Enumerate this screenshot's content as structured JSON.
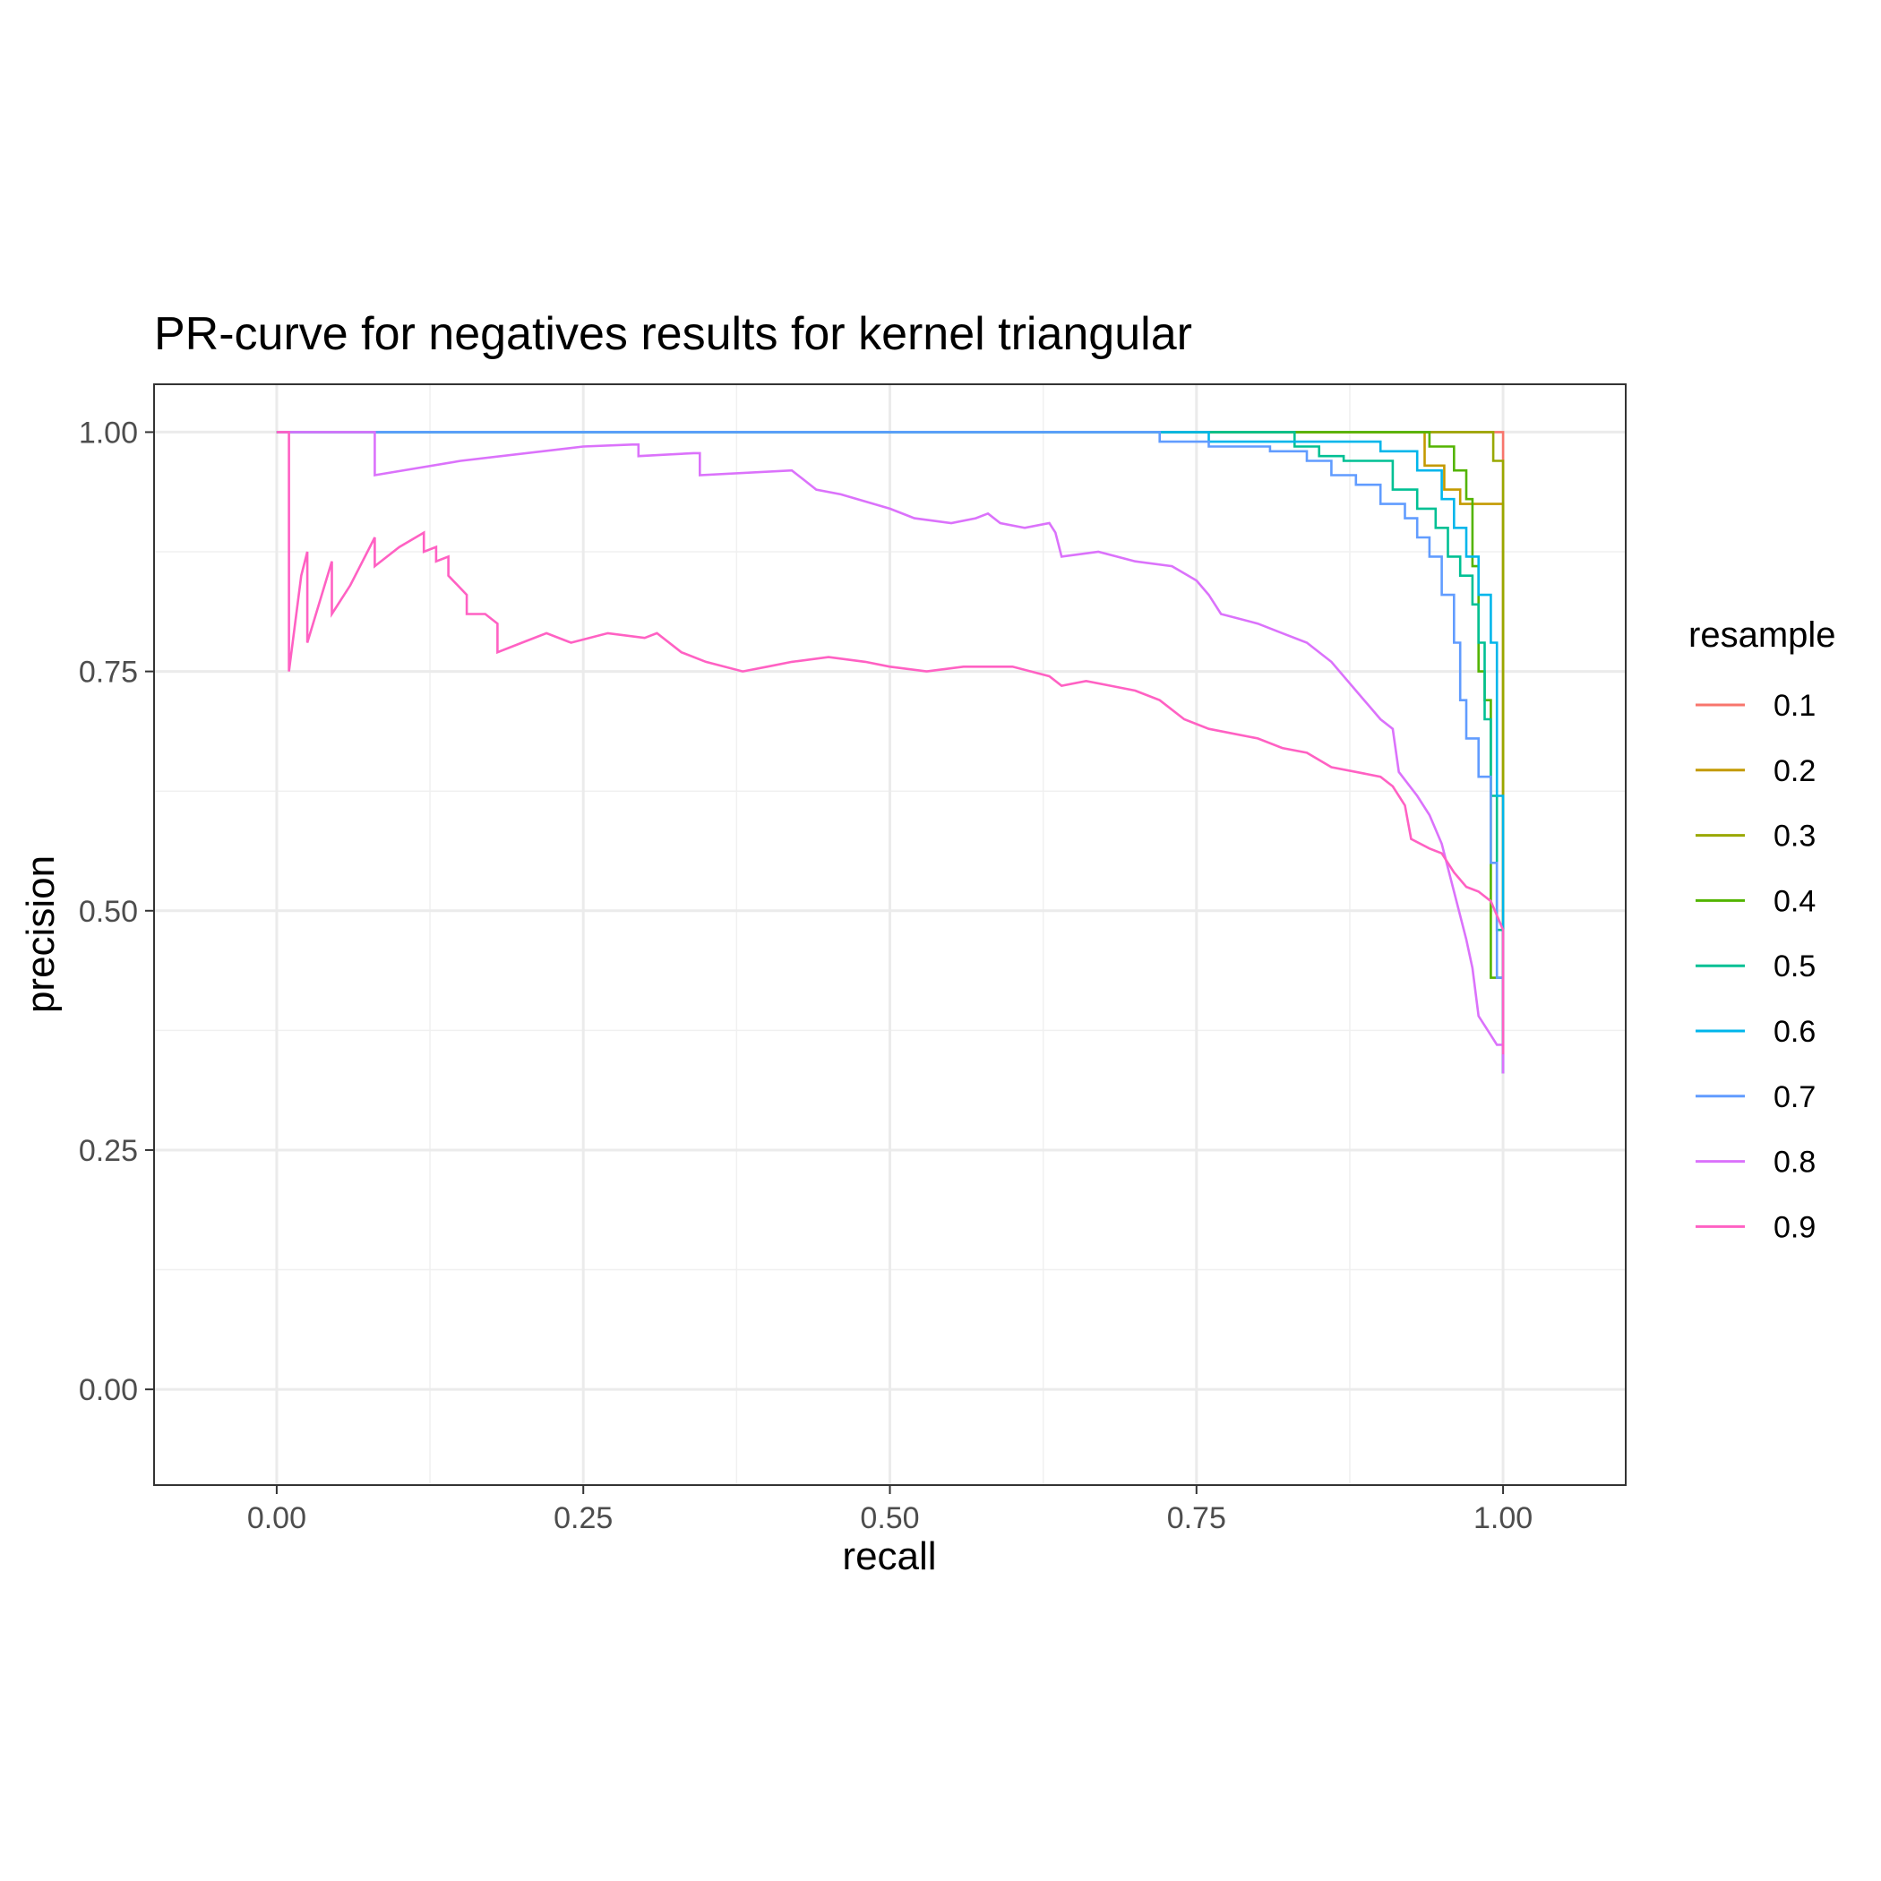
{
  "chart_data": {
    "type": "line",
    "title": "PR-curve for negatives results for kernel triangular",
    "xlabel": "recall",
    "ylabel": "precision",
    "xlim": [
      -0.1,
      1.1
    ],
    "ylim": [
      -0.1,
      1.05
    ],
    "x_ticks": [
      0,
      0.25,
      0.5,
      0.75,
      1
    ],
    "x_tick_labels": [
      "0.00",
      "0.25",
      "0.50",
      "0.75",
      "1.00"
    ],
    "y_ticks": [
      0,
      0.25,
      0.5,
      0.75,
      1
    ],
    "y_tick_labels": [
      "0.00",
      "0.25",
      "0.50",
      "0.75",
      "1.00"
    ],
    "grid": true,
    "legend": {
      "title": "resample",
      "position": "right"
    },
    "series": [
      {
        "name": "0.1",
        "color": "#F8766D",
        "points": [
          [
            0,
            1
          ],
          [
            0.999,
            1
          ],
          [
            1,
            1
          ],
          [
            1,
            0.35
          ],
          [
            1,
            0.33
          ]
        ]
      },
      {
        "name": "0.2",
        "color": "#C49A00",
        "points": [
          [
            0,
            1
          ],
          [
            0.936,
            1
          ],
          [
            0.936,
            0.965
          ],
          [
            0.952,
            0.965
          ],
          [
            0.952,
            0.94
          ],
          [
            0.965,
            0.94
          ],
          [
            0.965,
            0.925
          ],
          [
            1,
            0.925
          ],
          [
            1,
            0.33
          ]
        ]
      },
      {
        "name": "0.3",
        "color": "#99A800",
        "points": [
          [
            0,
            1
          ],
          [
            0.992,
            1
          ],
          [
            0.992,
            0.97
          ],
          [
            1,
            0.97
          ],
          [
            1,
            0.33
          ]
        ]
      },
      {
        "name": "0.4",
        "color": "#53B400",
        "points": [
          [
            0,
            1
          ],
          [
            0.94,
            1
          ],
          [
            0.94,
            0.985
          ],
          [
            0.96,
            0.985
          ],
          [
            0.96,
            0.96
          ],
          [
            0.97,
            0.96
          ],
          [
            0.97,
            0.93
          ],
          [
            0.975,
            0.93
          ],
          [
            0.975,
            0.86
          ],
          [
            0.98,
            0.86
          ],
          [
            0.98,
            0.75
          ],
          [
            0.985,
            0.75
          ],
          [
            0.985,
            0.72
          ],
          [
            0.99,
            0.72
          ],
          [
            0.99,
            0.43
          ],
          [
            1,
            0.43
          ],
          [
            1,
            0.33
          ]
        ]
      },
      {
        "name": "0.5",
        "color": "#00C094",
        "points": [
          [
            0,
            1
          ],
          [
            0.83,
            1
          ],
          [
            0.83,
            0.985
          ],
          [
            0.85,
            0.985
          ],
          [
            0.85,
            0.975
          ],
          [
            0.87,
            0.975
          ],
          [
            0.87,
            0.97
          ],
          [
            0.91,
            0.97
          ],
          [
            0.91,
            0.94
          ],
          [
            0.93,
            0.94
          ],
          [
            0.93,
            0.92
          ],
          [
            0.945,
            0.92
          ],
          [
            0.945,
            0.9
          ],
          [
            0.955,
            0.9
          ],
          [
            0.955,
            0.87
          ],
          [
            0.965,
            0.87
          ],
          [
            0.965,
            0.85
          ],
          [
            0.975,
            0.85
          ],
          [
            0.975,
            0.82
          ],
          [
            0.98,
            0.82
          ],
          [
            0.98,
            0.78
          ],
          [
            0.985,
            0.78
          ],
          [
            0.985,
            0.7
          ],
          [
            0.99,
            0.7
          ],
          [
            0.99,
            0.62
          ],
          [
            0.995,
            0.62
          ],
          [
            0.995,
            0.48
          ],
          [
            1,
            0.48
          ],
          [
            1,
            0.33
          ]
        ]
      },
      {
        "name": "0.6",
        "color": "#00B6EB",
        "points": [
          [
            0,
            1
          ],
          [
            0.72,
            1
          ],
          [
            0.76,
            1
          ],
          [
            0.76,
            0.99
          ],
          [
            0.9,
            0.99
          ],
          [
            0.9,
            0.98
          ],
          [
            0.93,
            0.98
          ],
          [
            0.93,
            0.96
          ],
          [
            0.95,
            0.96
          ],
          [
            0.95,
            0.93
          ],
          [
            0.96,
            0.93
          ],
          [
            0.96,
            0.9
          ],
          [
            0.97,
            0.9
          ],
          [
            0.97,
            0.87
          ],
          [
            0.98,
            0.87
          ],
          [
            0.98,
            0.83
          ],
          [
            0.99,
            0.83
          ],
          [
            0.99,
            0.78
          ],
          [
            0.995,
            0.78
          ],
          [
            0.995,
            0.62
          ],
          [
            1,
            0.62
          ],
          [
            1,
            0.33
          ]
        ]
      },
      {
        "name": "0.7",
        "color": "#619CFF",
        "points": [
          [
            0,
            1
          ],
          [
            0.72,
            1
          ],
          [
            0.72,
            0.99
          ],
          [
            0.76,
            0.99
          ],
          [
            0.76,
            0.985
          ],
          [
            0.81,
            0.985
          ],
          [
            0.81,
            0.98
          ],
          [
            0.84,
            0.98
          ],
          [
            0.84,
            0.97
          ],
          [
            0.86,
            0.97
          ],
          [
            0.86,
            0.955
          ],
          [
            0.88,
            0.955
          ],
          [
            0.88,
            0.945
          ],
          [
            0.9,
            0.945
          ],
          [
            0.9,
            0.925
          ],
          [
            0.92,
            0.925
          ],
          [
            0.92,
            0.91
          ],
          [
            0.93,
            0.91
          ],
          [
            0.93,
            0.89
          ],
          [
            0.94,
            0.89
          ],
          [
            0.94,
            0.87
          ],
          [
            0.95,
            0.87
          ],
          [
            0.95,
            0.83
          ],
          [
            0.96,
            0.83
          ],
          [
            0.96,
            0.78
          ],
          [
            0.965,
            0.78
          ],
          [
            0.965,
            0.72
          ],
          [
            0.97,
            0.72
          ],
          [
            0.97,
            0.68
          ],
          [
            0.98,
            0.68
          ],
          [
            0.98,
            0.64
          ],
          [
            0.99,
            0.64
          ],
          [
            0.99,
            0.55
          ],
          [
            0.995,
            0.55
          ],
          [
            0.995,
            0.43
          ],
          [
            1,
            0.43
          ],
          [
            1,
            0.33
          ]
        ]
      },
      {
        "name": "0.8",
        "color": "#DB72FB",
        "points": [
          [
            0,
            1
          ],
          [
            0.08,
            1
          ],
          [
            0.08,
            0.955
          ],
          [
            0.15,
            0.97
          ],
          [
            0.25,
            0.985
          ],
          [
            0.29,
            0.987
          ],
          [
            0.295,
            0.987
          ],
          [
            0.295,
            0.975
          ],
          [
            0.34,
            0.978
          ],
          [
            0.345,
            0.978
          ],
          [
            0.345,
            0.955
          ],
          [
            0.42,
            0.96
          ],
          [
            0.43,
            0.95
          ],
          [
            0.44,
            0.94
          ],
          [
            0.46,
            0.935
          ],
          [
            0.5,
            0.92
          ],
          [
            0.52,
            0.91
          ],
          [
            0.55,
            0.905
          ],
          [
            0.57,
            0.91
          ],
          [
            0.58,
            0.915
          ],
          [
            0.59,
            0.905
          ],
          [
            0.61,
            0.9
          ],
          [
            0.63,
            0.905
          ],
          [
            0.635,
            0.895
          ],
          [
            0.64,
            0.87
          ],
          [
            0.67,
            0.875
          ],
          [
            0.7,
            0.865
          ],
          [
            0.73,
            0.86
          ],
          [
            0.75,
            0.845
          ],
          [
            0.76,
            0.83
          ],
          [
            0.77,
            0.81
          ],
          [
            0.8,
            0.8
          ],
          [
            0.82,
            0.79
          ],
          [
            0.84,
            0.78
          ],
          [
            0.86,
            0.76
          ],
          [
            0.88,
            0.73
          ],
          [
            0.9,
            0.7
          ],
          [
            0.91,
            0.69
          ],
          [
            0.915,
            0.645
          ],
          [
            0.93,
            0.62
          ],
          [
            0.94,
            0.6
          ],
          [
            0.95,
            0.57
          ],
          [
            0.96,
            0.52
          ],
          [
            0.97,
            0.47
          ],
          [
            0.975,
            0.44
          ],
          [
            0.98,
            0.39
          ],
          [
            0.99,
            0.37
          ],
          [
            0.995,
            0.36
          ],
          [
            1,
            0.36
          ],
          [
            1,
            0.33
          ]
        ]
      },
      {
        "name": "0.9",
        "color": "#FF61C3",
        "points": [
          [
            0,
            1
          ],
          [
            0.01,
            1
          ],
          [
            0.01,
            0.75
          ],
          [
            0.02,
            0.85
          ],
          [
            0.025,
            0.875
          ],
          [
            0.025,
            0.78
          ],
          [
            0.045,
            0.865
          ],
          [
            0.045,
            0.81
          ],
          [
            0.06,
            0.84
          ],
          [
            0.08,
            0.89
          ],
          [
            0.08,
            0.86
          ],
          [
            0.1,
            0.88
          ],
          [
            0.12,
            0.895
          ],
          [
            0.12,
            0.875
          ],
          [
            0.13,
            0.88
          ],
          [
            0.13,
            0.865
          ],
          [
            0.14,
            0.87
          ],
          [
            0.14,
            0.85
          ],
          [
            0.155,
            0.83
          ],
          [
            0.155,
            0.81
          ],
          [
            0.17,
            0.81
          ],
          [
            0.18,
            0.8
          ],
          [
            0.18,
            0.77
          ],
          [
            0.2,
            0.78
          ],
          [
            0.22,
            0.79
          ],
          [
            0.24,
            0.78
          ],
          [
            0.27,
            0.79
          ],
          [
            0.3,
            0.785
          ],
          [
            0.31,
            0.79
          ],
          [
            0.33,
            0.77
          ],
          [
            0.35,
            0.76
          ],
          [
            0.38,
            0.75
          ],
          [
            0.4,
            0.755
          ],
          [
            0.42,
            0.76
          ],
          [
            0.45,
            0.765
          ],
          [
            0.48,
            0.76
          ],
          [
            0.5,
            0.755
          ],
          [
            0.53,
            0.75
          ],
          [
            0.56,
            0.755
          ],
          [
            0.6,
            0.755
          ],
          [
            0.63,
            0.745
          ],
          [
            0.64,
            0.735
          ],
          [
            0.66,
            0.74
          ],
          [
            0.68,
            0.735
          ],
          [
            0.7,
            0.73
          ],
          [
            0.72,
            0.72
          ],
          [
            0.74,
            0.7
          ],
          [
            0.76,
            0.69
          ],
          [
            0.8,
            0.68
          ],
          [
            0.82,
            0.67
          ],
          [
            0.84,
            0.665
          ],
          [
            0.86,
            0.65
          ],
          [
            0.88,
            0.645
          ],
          [
            0.9,
            0.64
          ],
          [
            0.91,
            0.63
          ],
          [
            0.92,
            0.61
          ],
          [
            0.925,
            0.575
          ],
          [
            0.94,
            0.565
          ],
          [
            0.95,
            0.56
          ],
          [
            0.96,
            0.54
          ],
          [
            0.97,
            0.525
          ],
          [
            0.98,
            0.52
          ],
          [
            0.99,
            0.51
          ],
          [
            1,
            0.48
          ],
          [
            1,
            0.35
          ]
        ]
      }
    ]
  }
}
